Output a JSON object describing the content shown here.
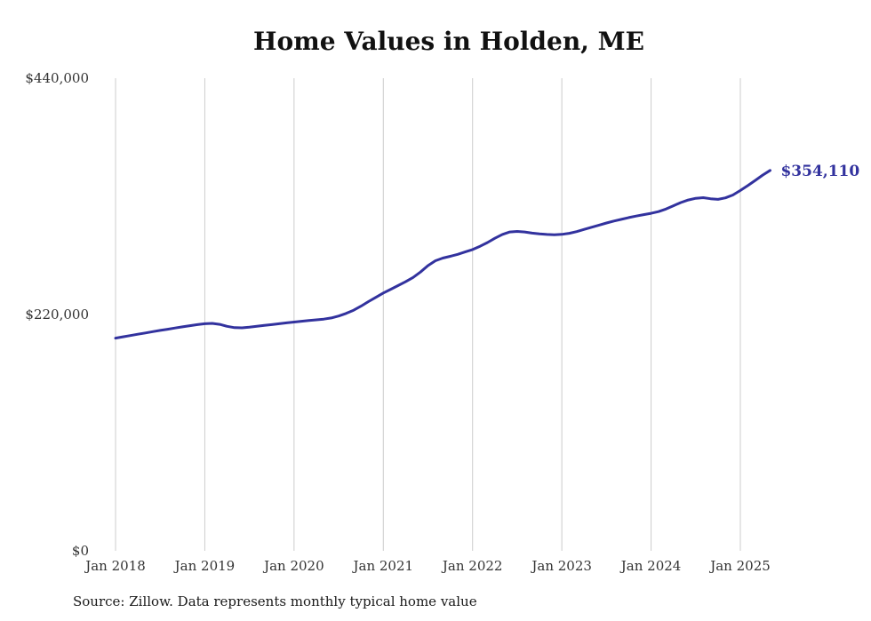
{
  "chart_data": {
    "type": "line",
    "title": "Home Values in Holden, ME",
    "source": "Source: Zillow. Data represents monthly typical home value",
    "xlabel": "",
    "ylabel": "",
    "ylim": [
      0,
      440000
    ],
    "grid": "vertical",
    "legend_position": "none",
    "line_color": "#32329e",
    "gridline_color": "#cccccc",
    "end_label": "$354,110",
    "yticks": [
      {
        "value": 0,
        "label": "$0"
      },
      {
        "value": 220000,
        "label": "$220,000"
      },
      {
        "value": 440000,
        "label": "$440,000"
      }
    ],
    "xticks": [
      {
        "label": "Jan 2018",
        "index": 0
      },
      {
        "label": "Jan 2019",
        "index": 12
      },
      {
        "label": "Jan 2020",
        "index": 24
      },
      {
        "label": "Jan 2021",
        "index": 36
      },
      {
        "label": "Jan 2022",
        "index": 48
      },
      {
        "label": "Jan 2023",
        "index": 60
      },
      {
        "label": "Jan 2024",
        "index": 72
      },
      {
        "label": "Jan 2025",
        "index": 84
      }
    ],
    "series": [
      {
        "name": "Typical home value",
        "x_start": "Jan 2018",
        "x_step": "1 month",
        "values": [
          198000,
          199200,
          200400,
          201600,
          202800,
          204000,
          205200,
          206300,
          207400,
          208500,
          209600,
          210600,
          211400,
          211700,
          210800,
          209000,
          207800,
          207600,
          208200,
          209000,
          209800,
          210600,
          211400,
          212200,
          213000,
          213700,
          214400,
          215000,
          215700,
          216800,
          218600,
          221000,
          224000,
          227800,
          232000,
          236000,
          240000,
          243500,
          247000,
          250500,
          254500,
          259500,
          265500,
          270000,
          272500,
          274200,
          276000,
          278200,
          280500,
          283500,
          287000,
          291000,
          294500,
          296800,
          297300,
          296800,
          295800,
          295000,
          294500,
          294300,
          294600,
          295600,
          297200,
          299200,
          301200,
          303200,
          305200,
          307000,
          308600,
          310200,
          311600,
          313000,
          314200,
          315800,
          318200,
          321200,
          324200,
          326600,
          328200,
          328800,
          327800,
          327200,
          328600,
          331200,
          335500,
          340000,
          344800,
          349800,
          354110
        ]
      }
    ]
  }
}
